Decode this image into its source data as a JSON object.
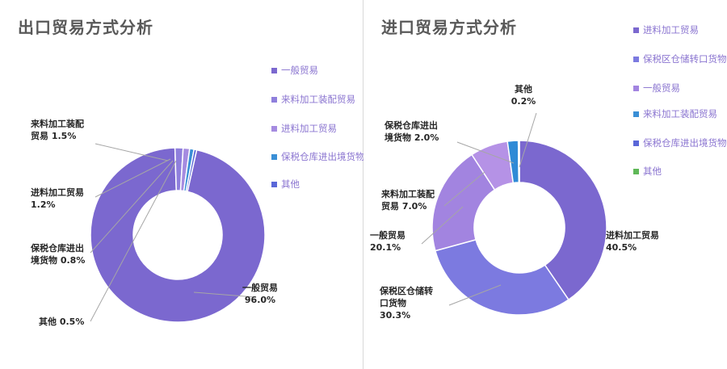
{
  "chart_data": [
    {
      "type": "pie",
      "donut": true,
      "title": "出口贸易方式分析",
      "slices": [
        {
          "label": "一般贸易",
          "value": 96.0,
          "color": "#7b68cf",
          "data_label": [
            "一般贸易",
            "96.0%"
          ]
        },
        {
          "label": "来料加工装配贸易",
          "value": 1.5,
          "color": "#8f7fdc",
          "data_label": [
            "来料加工装配",
            "贸易 1.5%"
          ]
        },
        {
          "label": "进料加工贸易",
          "value": 1.2,
          "color": "#a58be0",
          "data_label": [
            "进料加工贸易",
            "1.2%"
          ]
        },
        {
          "label": "保税仓库进出境货物",
          "value": 0.8,
          "color": "#3a8fd6",
          "data_label": [
            "保税仓库进出",
            "境货物 0.8%"
          ]
        },
        {
          "label": "其他",
          "value": 0.5,
          "color": "#5a67d8",
          "data_label": [
            "其他 0.5%"
          ]
        }
      ],
      "legend": [
        {
          "label": "一般贸易",
          "color": "#7b68cf"
        },
        {
          "label": "来料加工装配贸易",
          "color": "#8f7fdc"
        },
        {
          "label": "进料加工贸易",
          "color": "#a58be0"
        },
        {
          "label": "保税仓库进出境货物",
          "color": "#3a8fd6"
        },
        {
          "label": "其他",
          "color": "#5a67d8"
        }
      ],
      "legend_position": "right"
    },
    {
      "type": "pie",
      "donut": true,
      "title": "进口贸易方式分析",
      "slices": [
        {
          "label": "进料加工贸易",
          "value": 40.5,
          "color": "#7b68cf",
          "data_label": [
            "进料加工贸易",
            "40.5%"
          ]
        },
        {
          "label": "保税区仓储转口货物",
          "value": 30.3,
          "color": "#7c7ae0",
          "data_label": [
            "保税区仓储转",
            "口货物",
            "30.3%"
          ]
        },
        {
          "label": "一般贸易",
          "value": 20.1,
          "color": "#a284e0",
          "data_label": [
            "一般贸易",
            "20.1%"
          ]
        },
        {
          "label": "来料加工装配贸易",
          "value": 7.0,
          "color": "#b592e6",
          "data_label": [
            "来料加工装配",
            "贸易 7.0%"
          ]
        },
        {
          "label": "保税仓库进出境货物",
          "value": 2.0,
          "color": "#2f8ad6",
          "data_label": [
            "保税仓库进出",
            "境货物 2.0%"
          ]
        },
        {
          "label": "其他",
          "value": 0.2,
          "color": "#5a67d8",
          "data_label": [
            "其他",
            "0.2%"
          ]
        }
      ],
      "legend": [
        {
          "label": "进料加工贸易",
          "color": "#7b68cf"
        },
        {
          "label": "保税区仓储转口货物",
          "color": "#7c7ae0"
        },
        {
          "label": "一般贸易",
          "color": "#a284e0"
        },
        {
          "label": "来料加工装配贸易",
          "color": "#3a8fd6"
        },
        {
          "label": "保税仓库进出境货物",
          "color": "#5a67d8"
        },
        {
          "label": "其他",
          "color": "#5fb858"
        }
      ],
      "legend_position": "right"
    }
  ],
  "colors": {
    "legend_text": "#8a74d0",
    "leader_line": "#a6a6a6"
  }
}
